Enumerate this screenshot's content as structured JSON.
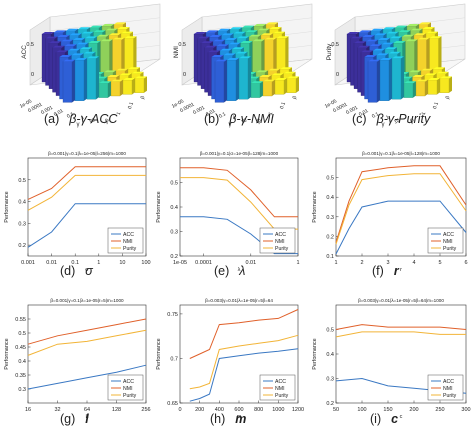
{
  "captions": [
    {
      "label": "(a)",
      "text": "β-γ-ACC"
    },
    {
      "label": "(b)",
      "text": "β-γ-NMI"
    },
    {
      "label": "(c)",
      "text": "β-γ-Purity"
    },
    {
      "label": "(d)",
      "text": "σ"
    },
    {
      "label": "(e)",
      "text": "λ"
    },
    {
      "label": "(f)",
      "text": "r"
    },
    {
      "label": "(g)",
      "text": "l"
    },
    {
      "label": "(h)",
      "text": "m"
    },
    {
      "label": "(i)",
      "text": "c"
    }
  ],
  "colors": {
    "acc": "#3a78c3",
    "nmi": "#e0602a",
    "purity": "#f2b437",
    "bar_palette": [
      "#3c2f9a",
      "#2e5fd6",
      "#1f8fe0",
      "#1eb5cf",
      "#31c7a0",
      "#8fd05a",
      "#f4d22c",
      "#f7e81f"
    ]
  },
  "chart_data": [
    {
      "type": "bar3d",
      "ylabel": "ACC",
      "x_ticks": [
        "1e-05",
        "0.0001",
        "0.001",
        "0.01",
        "0.1",
        "1",
        "10"
      ],
      "y_ticks": [
        "10",
        "1",
        "0.1",
        "β"
      ],
      "x_axis_label": "γ",
      "y_axis_label": "β",
      "z_ticks": [
        "0",
        "0.5"
      ],
      "zlim": [
        0,
        0.6
      ]
    },
    {
      "type": "bar3d",
      "ylabel": "NMI",
      "x_ticks": [
        "1e-05",
        "0.0001",
        "0.001",
        "0.01",
        "0.1",
        "1",
        "10"
      ],
      "y_ticks": [
        "10",
        "1",
        "0.1",
        "β"
      ],
      "x_axis_label": "γ",
      "y_axis_label": "β",
      "z_ticks": [
        "0",
        "0.5"
      ],
      "zlim": [
        0,
        0.6
      ]
    },
    {
      "type": "bar3d",
      "ylabel": "Purity",
      "x_ticks": [
        "1e-05",
        "0.0001",
        "0.001",
        "0.01",
        "0.1",
        "1",
        "10"
      ],
      "y_ticks": [
        "10",
        "1",
        "0.1",
        "β"
      ],
      "x_axis_label": "γ",
      "y_axis_label": "β",
      "z_ticks": [
        "0",
        "0.5"
      ],
      "zlim": [
        0,
        0.6
      ]
    },
    {
      "type": "line",
      "title": "β=0.001|γ=0.1|λ=1e-05|l=256|m=1000",
      "xlabel": "σ",
      "ylabel": "Performance",
      "xscale": "log",
      "x": [
        0.001,
        0.01,
        0.1,
        1,
        10,
        100
      ],
      "xticks": [
        "0.001",
        "0.01",
        "0.1",
        "1",
        "10",
        "100"
      ],
      "ylim": [
        0.15,
        0.6
      ],
      "yticks": [
        0.2,
        0.3,
        0.4,
        0.5
      ],
      "series": [
        {
          "name": "ACC",
          "values": [
            0.19,
            0.26,
            0.39,
            0.39,
            0.39,
            0.39
          ]
        },
        {
          "name": "NMI",
          "values": [
            0.41,
            0.46,
            0.56,
            0.56,
            0.56,
            0.56
          ]
        },
        {
          "name": "Purity",
          "values": [
            0.36,
            0.42,
            0.52,
            0.52,
            0.52,
            0.52
          ]
        }
      ],
      "legend": "bottom-right"
    },
    {
      "type": "line",
      "title": "β=0.001|γ=0.1|σ=1e-05|l=128|m=1000",
      "xlabel": "λ",
      "ylabel": "Performance",
      "xscale": "log",
      "x": [
        1e-05,
        0.0001,
        0.001,
        0.01,
        0.1,
        1
      ],
      "xticks": [
        "1e-05",
        "0.0001",
        "0.01",
        "1"
      ],
      "xtick_values": [
        1e-05,
        0.0001,
        0.01,
        1
      ],
      "ylim": [
        0.2,
        0.6
      ],
      "yticks": [
        0.2,
        0.3,
        0.4,
        0.5
      ],
      "series": [
        {
          "name": "ACC",
          "values": [
            0.36,
            0.36,
            0.35,
            0.29,
            0.21,
            0.21
          ]
        },
        {
          "name": "NMI",
          "values": [
            0.56,
            0.56,
            0.55,
            0.47,
            0.36,
            0.36
          ]
        },
        {
          "name": "Purity",
          "values": [
            0.52,
            0.52,
            0.51,
            0.42,
            0.31,
            0.31
          ]
        }
      ],
      "legend": "bottom-right"
    },
    {
      "type": "line",
      "title": "β=0.001|γ=0.1|λ=1e-05|l=128|m=1000",
      "xlabel": "r",
      "ylabel": "Performance",
      "x": [
        1,
        1.5,
        2,
        3,
        4,
        5,
        6
      ],
      "xticks": [
        "1",
        "2",
        "3",
        "4",
        "5",
        "6"
      ],
      "xtick_values": [
        1,
        2,
        3,
        4,
        5,
        6
      ],
      "ylim": [
        0.1,
        0.6
      ],
      "yticks": [
        0.1,
        0.2,
        0.3,
        0.4,
        0.5
      ],
      "series": [
        {
          "name": "ACC",
          "values": [
            0.11,
            0.24,
            0.35,
            0.38,
            0.38,
            0.38,
            0.22
          ]
        },
        {
          "name": "NMI",
          "values": [
            0.17,
            0.38,
            0.53,
            0.55,
            0.56,
            0.56,
            0.36
          ]
        },
        {
          "name": "Purity",
          "values": [
            0.16,
            0.36,
            0.49,
            0.51,
            0.52,
            0.52,
            0.33
          ]
        }
      ],
      "legend": "bottom-right"
    },
    {
      "type": "line",
      "title": "β=0.001|γ=0.1|λ=1e-05|r=5|m=1000",
      "xlabel": "L",
      "ylabel": "Performance",
      "xscale": "log2",
      "x": [
        16,
        32,
        64,
        128,
        256
      ],
      "xticks": [
        "16",
        "32",
        "64",
        "128",
        "256"
      ],
      "ylim": [
        0.25,
        0.6
      ],
      "yticks": [
        0.3,
        0.35,
        0.4,
        0.45,
        0.5,
        0.55
      ],
      "series": [
        {
          "name": "ACC",
          "values": [
            0.3,
            0.32,
            0.34,
            0.36,
            0.385
          ]
        },
        {
          "name": "NMI",
          "values": [
            0.46,
            0.49,
            0.51,
            0.53,
            0.55
          ]
        },
        {
          "name": "Purity",
          "values": [
            0.42,
            0.46,
            0.47,
            0.49,
            0.51
          ]
        }
      ],
      "legend": "bottom-right"
    },
    {
      "type": "line",
      "title": "β=0.003|γ=0.01|λ=1e-05|r=5|l=64",
      "xlabel": "m",
      "ylabel": "Performance",
      "x": [
        100,
        200,
        300,
        400,
        600,
        800,
        1000,
        1200
      ],
      "xticks": [
        "0",
        "200",
        "400",
        "600",
        "800",
        "1000",
        "1200"
      ],
      "xtick_values": [
        0,
        200,
        400,
        600,
        800,
        1000,
        1200
      ],
      "xlim": [
        0,
        1200
      ],
      "ylim": [
        0.65,
        0.76
      ],
      "yticks": [
        0.65,
        0.7,
        0.75
      ],
      "series": [
        {
          "name": "ACC",
          "values": [
            0.652,
            0.655,
            0.66,
            0.7,
            0.703,
            0.706,
            0.708,
            0.711
          ]
        },
        {
          "name": "NMI",
          "values": [
            0.7,
            0.705,
            0.71,
            0.738,
            0.74,
            0.743,
            0.745,
            0.755
          ]
        },
        {
          "name": "Purity",
          "values": [
            0.666,
            0.668,
            0.672,
            0.71,
            0.714,
            0.717,
            0.72,
            0.726
          ]
        }
      ],
      "legend": "bottom-right"
    },
    {
      "type": "line",
      "title": "β=0.003|γ=0.01|λ=1e-05|r=5|l=64|m=1000",
      "xlabel": "c",
      "ylabel": "Performance",
      "x": [
        50,
        100,
        150,
        200,
        250,
        300
      ],
      "xticks": [
        "50",
        "100",
        "150",
        "200",
        "250",
        "300"
      ],
      "ylim": [
        0.2,
        0.6
      ],
      "yticks": [
        0.2,
        0.3,
        0.4,
        0.5
      ],
      "series": [
        {
          "name": "ACC",
          "values": [
            0.29,
            0.3,
            0.27,
            0.26,
            0.25,
            0.24
          ]
        },
        {
          "name": "NMI",
          "values": [
            0.5,
            0.52,
            0.51,
            0.51,
            0.51,
            0.5
          ]
        },
        {
          "name": "Purity",
          "values": [
            0.47,
            0.49,
            0.49,
            0.49,
            0.48,
            0.48
          ]
        }
      ],
      "legend": "bottom-right"
    }
  ]
}
